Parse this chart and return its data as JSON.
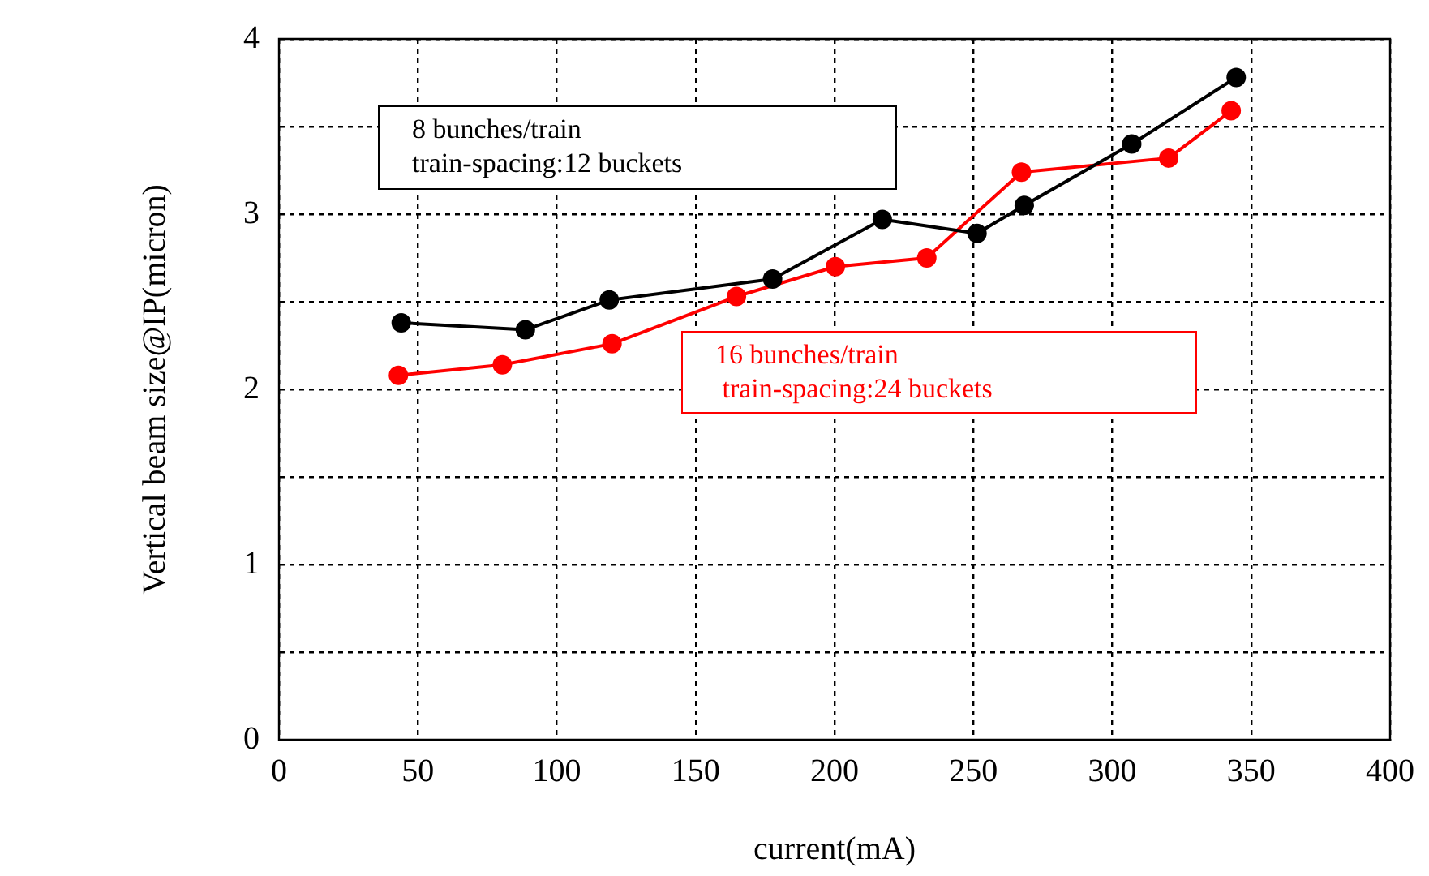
{
  "chart_data": {
    "type": "line",
    "xlabel": "current(mA)",
    "ylabel": "Vertical beam size@IP(micron)",
    "xlim": [
      0,
      400
    ],
    "xticks": [
      0,
      50,
      100,
      150,
      200,
      250,
      300,
      350,
      400
    ],
    "ylim": [
      0,
      4
    ],
    "yticks": [
      0,
      {
        "value": 0.5,
        "label": null
      },
      1,
      {
        "value": 1.5,
        "label": null
      },
      2,
      {
        "value": 2.5,
        "label": null
      },
      3,
      {
        "value": 3.5,
        "label": null
      },
      4
    ],
    "grid": true,
    "legend": false,
    "marker": "circle",
    "line_style": "solid",
    "series": [
      {
        "name": "8 bunches/train\ntrain-spacing:12 buckets",
        "color": "#000000",
        "x": [
          44,
          88.7,
          118.9,
          177.7,
          217.2,
          251.3,
          268.3,
          307,
          344.6
        ],
        "values": [
          2.38,
          2.34,
          2.51,
          2.63,
          2.97,
          2.89,
          3.05,
          3.4,
          3.78
        ]
      },
      {
        "name": "16 bunches/train\n train-spacing:24 buckets",
        "color": "#ff0000",
        "x": [
          43,
          80.4,
          119.9,
          164.7,
          200.3,
          233.2,
          267.3,
          320.3,
          342.8
        ],
        "values": [
          2.08,
          2.14,
          2.26,
          2.53,
          2.7,
          2.75,
          3.24,
          3.32,
          3.59
        ]
      }
    ]
  }
}
